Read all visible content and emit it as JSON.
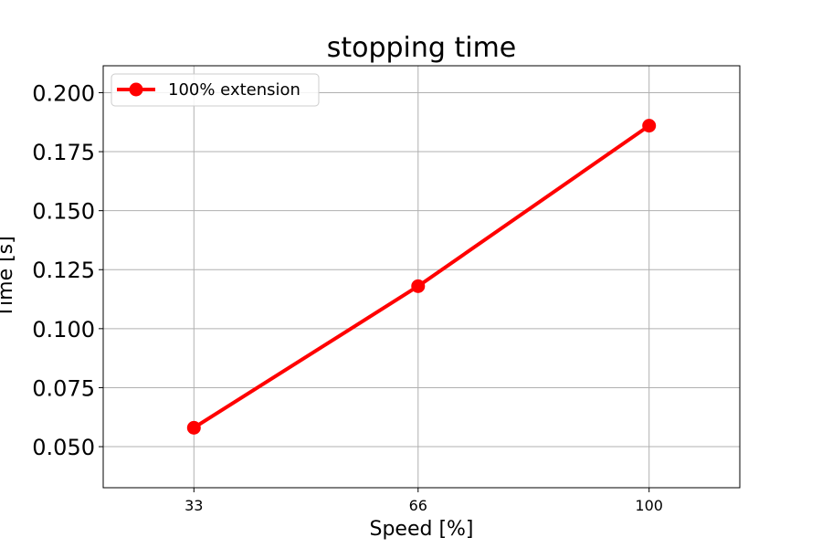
{
  "chart_data": {
    "type": "line",
    "title": "stopping time",
    "xlabel": "Speed [%]",
    "ylabel": "Time [s]",
    "x": [
      33,
      66,
      100
    ],
    "x_tick_labels": [
      "33",
      "66",
      "100"
    ],
    "y_ticks": [
      0.05,
      0.075,
      0.1,
      0.125,
      0.15,
      0.175,
      0.2
    ],
    "y_tick_labels": [
      "0.050",
      "0.075",
      "0.100",
      "0.125",
      "0.150",
      "0.175",
      "0.200"
    ],
    "xlim": [
      19.65,
      113.35
    ],
    "ylim": [
      0.0326,
      0.2114
    ],
    "grid": true,
    "legend_position": "top-left",
    "series": [
      {
        "name": "100% extension",
        "values": [
          0.058,
          0.118,
          0.186
        ],
        "color": "#ff0000",
        "marker": "circle"
      }
    ]
  }
}
